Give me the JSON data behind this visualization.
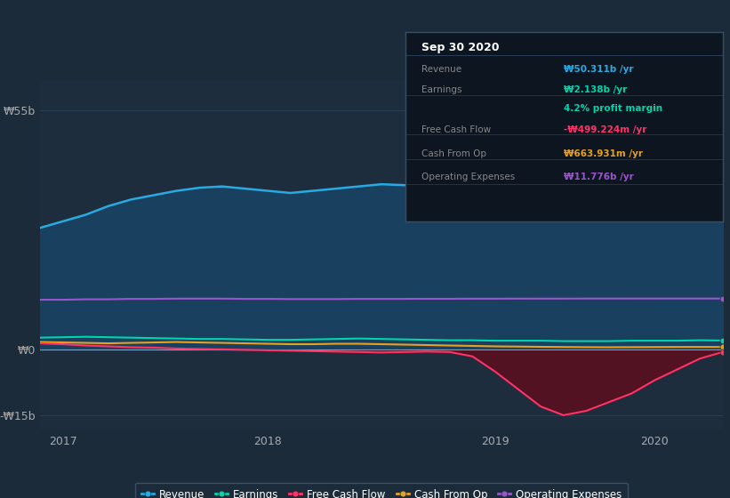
{
  "bg_color": "#1c2b3a",
  "plot_bg_color": "#1e2d3d",
  "grid_color": "#2a3f55",
  "ylim": [
    -18,
    62
  ],
  "revenue_color": "#29abe2",
  "revenue_fill": "#1a4060",
  "earnings_color": "#00d4aa",
  "fcf_color": "#ff3366",
  "fcf_fill": "#5a1020",
  "cashfromop_color": "#e8a020",
  "opex_color": "#9b55cc",
  "legend_bg": "#1c2b3a",
  "legend_border": "#3a4f65",
  "tooltip_bg": "#0d1520",
  "tooltip_border": "#3a4f65",
  "revenue": [
    28.0,
    29.5,
    31.0,
    33.0,
    34.5,
    35.5,
    36.5,
    37.2,
    37.5,
    37.0,
    36.5,
    36.0,
    36.5,
    37.0,
    37.5,
    38.0,
    37.8,
    37.5,
    37.2,
    37.5,
    38.0,
    39.0,
    40.5,
    42.0,
    44.0,
    46.0,
    47.5,
    48.5,
    49.5,
    50.5,
    50.3
  ],
  "earnings": [
    2.8,
    2.9,
    3.0,
    2.9,
    2.8,
    2.7,
    2.6,
    2.5,
    2.5,
    2.4,
    2.3,
    2.3,
    2.4,
    2.5,
    2.6,
    2.5,
    2.4,
    2.3,
    2.2,
    2.2,
    2.1,
    2.1,
    2.1,
    2.0,
    2.0,
    2.0,
    2.1,
    2.1,
    2.1,
    2.2,
    2.138
  ],
  "fcf": [
    1.5,
    1.3,
    1.0,
    0.8,
    0.6,
    0.5,
    0.3,
    0.2,
    0.1,
    0.0,
    -0.1,
    -0.2,
    -0.3,
    -0.4,
    -0.5,
    -0.6,
    -0.5,
    -0.4,
    -0.5,
    -1.5,
    -5.0,
    -9.0,
    -13.0,
    -15.0,
    -14.0,
    -12.0,
    -10.0,
    -7.0,
    -4.5,
    -2.0,
    -0.499
  ],
  "cashfromop": [
    1.8,
    1.7,
    1.6,
    1.5,
    1.6,
    1.7,
    1.8,
    1.7,
    1.6,
    1.5,
    1.4,
    1.3,
    1.3,
    1.4,
    1.4,
    1.3,
    1.2,
    1.1,
    1.0,
    0.9,
    0.8,
    0.75,
    0.7,
    0.65,
    0.62,
    0.6,
    0.62,
    0.64,
    0.66,
    0.67,
    0.664
  ],
  "opex": [
    11.5,
    11.5,
    11.6,
    11.6,
    11.7,
    11.7,
    11.75,
    11.75,
    11.75,
    11.7,
    11.7,
    11.65,
    11.65,
    11.65,
    11.7,
    11.7,
    11.7,
    11.72,
    11.72,
    11.74,
    11.74,
    11.75,
    11.76,
    11.76,
    11.77,
    11.77,
    11.77,
    11.776,
    11.776,
    11.776,
    11.776
  ],
  "n_points": 31,
  "tooltip": {
    "title": "Sep 30 2020",
    "rows": [
      {
        "label": "Revenue",
        "value": "₩50.311b /yr",
        "label_color": "#888888",
        "value_color": "#29abe2"
      },
      {
        "label": "Earnings",
        "value": "₩2.138b /yr",
        "label_color": "#888888",
        "value_color": "#00d4aa"
      },
      {
        "label": "",
        "value": "4.2% profit margin",
        "label_color": "#888888",
        "value_color": "#00d4aa"
      },
      {
        "label": "Free Cash Flow",
        "value": "-₩499.224m /yr",
        "label_color": "#888888",
        "value_color": "#ff3366"
      },
      {
        "label": "Cash From Op",
        "value": "₩663.931m /yr",
        "label_color": "#888888",
        "value_color": "#e8a020"
      },
      {
        "label": "Operating Expenses",
        "value": "₩11.776b /yr",
        "label_color": "#888888",
        "value_color": "#9b55cc"
      }
    ]
  },
  "legend": [
    {
      "label": "Revenue",
      "color": "#29abe2"
    },
    {
      "label": "Earnings",
      "color": "#00d4aa"
    },
    {
      "label": "Free Cash Flow",
      "color": "#ff3366"
    },
    {
      "label": "Cash From Op",
      "color": "#e8a020"
    },
    {
      "label": "Operating Expenses",
      "color": "#9b55cc"
    }
  ]
}
